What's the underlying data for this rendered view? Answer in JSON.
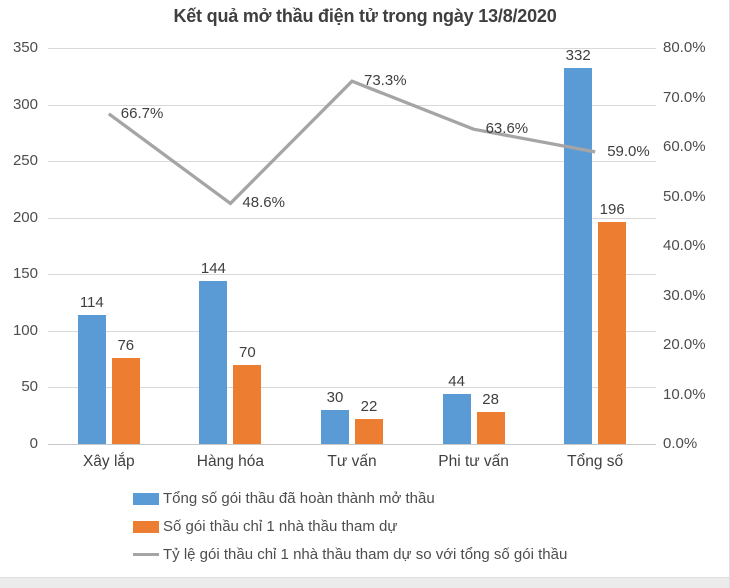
{
  "title": "Kết quả mở thầu điện tử trong ngày 13/8/2020",
  "chart_data": {
    "type": "bar",
    "subtype": "combo-bar-line",
    "categories": [
      "Xây lắp",
      "Hàng hóa",
      "Tư vấn",
      "Phi tư vấn",
      "Tổng số"
    ],
    "series": [
      {
        "name": "Tổng số gói thầu đã hoàn thành mở thầu",
        "type": "bar",
        "color": "#5B9BD5",
        "axis": "left",
        "values": [
          114,
          144,
          30,
          44,
          332
        ]
      },
      {
        "name": "Số gói thầu chỉ 1 nhà thầu tham dự",
        "type": "bar",
        "color": "#ED7D31",
        "axis": "left",
        "values": [
          76,
          70,
          22,
          28,
          196
        ]
      },
      {
        "name": "Tỷ lệ gói thầu chỉ 1 nhà thầu tham dự so với tổng số gói thầu",
        "type": "line",
        "color": "#A5A5A5",
        "axis": "right",
        "values": [
          66.7,
          48.6,
          73.3,
          63.6,
          59.0
        ],
        "point_labels": [
          "66.7%",
          "48.6%",
          "73.3%",
          "63.6%",
          "59.0%"
        ]
      }
    ],
    "left_axis": {
      "min": 0,
      "max": 350,
      "step": 50,
      "tick_labels": [
        "0",
        "50",
        "100",
        "150",
        "200",
        "250",
        "300",
        "350"
      ]
    },
    "right_axis": {
      "min": 0,
      "max": 80,
      "step": 10,
      "tick_labels": [
        "0.0%",
        "10.0%",
        "20.0%",
        "30.0%",
        "40.0%",
        "50.0%",
        "60.0%",
        "70.0%",
        "80.0%"
      ]
    },
    "grid": true,
    "legend_position": "bottom"
  },
  "legend": {
    "items": [
      {
        "label": "Tổng số gói thầu đã hoàn thành mở thầu",
        "marker": "rect",
        "color": "#5B9BD5"
      },
      {
        "label": "Số gói thầu chỉ 1 nhà thầu tham dự",
        "marker": "rect",
        "color": "#ED7D31"
      },
      {
        "label": "Tỷ lệ gói thầu chỉ 1 nhà thầu tham dự so với tổng số gói thầu",
        "marker": "line",
        "color": "#A5A5A5"
      }
    ]
  },
  "colors": {
    "grid": "#D9D9D9",
    "axis_text": "#4D4D4D",
    "data_label_text": "#3F3F3F",
    "title_text": "#3F3F3F"
  }
}
